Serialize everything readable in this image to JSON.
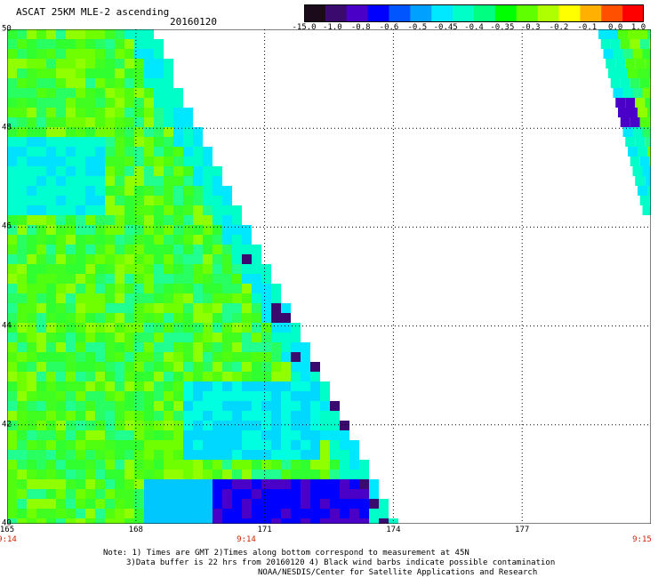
{
  "header": {
    "title": "ASCAT 25KM MLE-2 ascending",
    "date": "20160120"
  },
  "colorbar": {
    "colors": [
      "#1a0a1a",
      "#3b0a6e",
      "#4b00c8",
      "#0000ff",
      "#0055ff",
      "#00a0ff",
      "#00e8ff",
      "#00ffc8",
      "#00ff80",
      "#00ff00",
      "#60ff00",
      "#b0ff00",
      "#ffff00",
      "#ffb000",
      "#ff5000",
      "#ff0000"
    ],
    "ticks": [
      "-15.0",
      "-1.0",
      "-0.8",
      "-0.6",
      "-0.5",
      "-0.45",
      "-0.4",
      "-0.35",
      "-0.3",
      "-0.2",
      "-0.1",
      "0.0",
      "1.0"
    ]
  },
  "map": {
    "lon_range": [
      165,
      180
    ],
    "lat_range": [
      40,
      50
    ],
    "lat_labels": [
      "50",
      "48",
      "46",
      "44",
      "42",
      "40"
    ],
    "lon_labels": [
      "165",
      "168",
      "171",
      "174",
      "177"
    ],
    "time_labels": {
      "left": "9:14",
      "middle": "9:14",
      "right": "9:15"
    }
  },
  "notes": {
    "line1": "Note: 1) Times are GMT 2)Times along bottom correspond to measurement at 45N",
    "line2": "3)Data buffer is 22 hrs from 20160120 4) Black wind barbs indicate possible contamination",
    "line3": "NOAA/NESDIS/Center for Satellite Applications and Research"
  }
}
